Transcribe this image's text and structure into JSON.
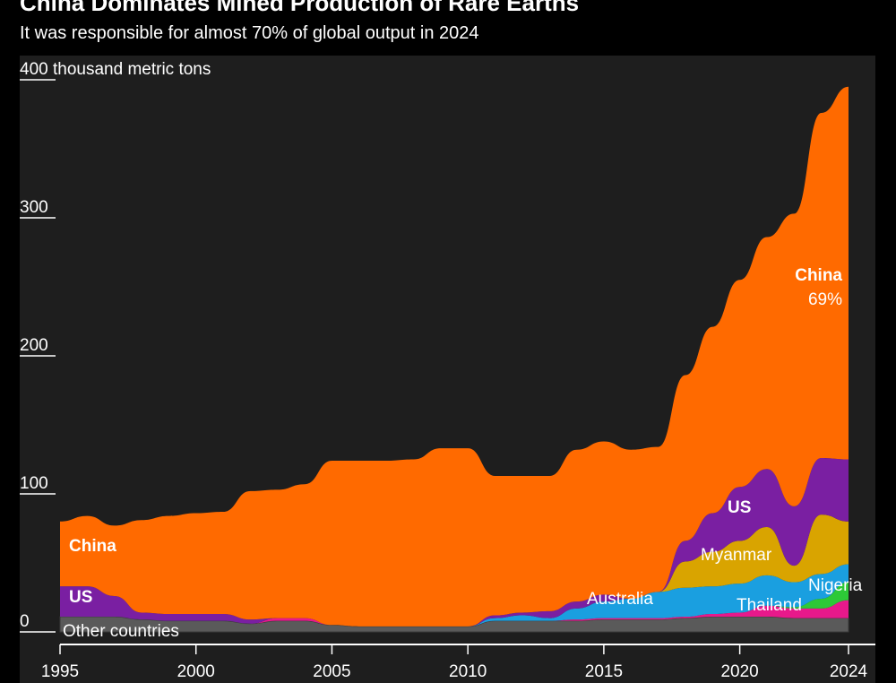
{
  "title": "China Dominates Mined Production of Rare Earths",
  "subtitle": "It was responsible for almost 70% of global output in 2024",
  "chart_data": {
    "type": "area",
    "stacked": true,
    "ylabel": "thousand metric tons",
    "ylim": [
      0,
      400
    ],
    "xlim": [
      1995,
      2024
    ],
    "yticks": [
      {
        "v": 0,
        "label": "0"
      },
      {
        "v": 100,
        "label": "100"
      },
      {
        "v": 200,
        "label": "200"
      },
      {
        "v": 300,
        "label": "300"
      },
      {
        "v": 400,
        "label": "400 thousand metric tons"
      }
    ],
    "xticks": [
      {
        "v": 1995,
        "label": "1995"
      },
      {
        "v": 2000,
        "label": "2000"
      },
      {
        "v": 2005,
        "label": "2005"
      },
      {
        "v": 2010,
        "label": "2010"
      },
      {
        "v": 2015,
        "label": "2015"
      },
      {
        "v": 2020,
        "label": "2020"
      },
      {
        "v": 2024,
        "label": "2024"
      }
    ],
    "x": [
      1995,
      1996,
      1997,
      1998,
      1999,
      2000,
      2001,
      2002,
      2003,
      2004,
      2005,
      2006,
      2007,
      2008,
      2009,
      2010,
      2011,
      2012,
      2013,
      2014,
      2015,
      2016,
      2017,
      2018,
      2019,
      2020,
      2021,
      2022,
      2023,
      2024
    ],
    "series": [
      {
        "name": "Other countries",
        "color": "#5a5a5a",
        "values": [
          11,
          11,
          11,
          9,
          8,
          8,
          8,
          6,
          8,
          8,
          5,
          4,
          4,
          4,
          4,
          4,
          8,
          8,
          8,
          8,
          9,
          9,
          9,
          10,
          11,
          11,
          11,
          10,
          10,
          10
        ]
      },
      {
        "name": "Thailand",
        "color": "#e8198b",
        "values": [
          0,
          0,
          0,
          0,
          0,
          0,
          0,
          0,
          2,
          2,
          0,
          0,
          0,
          0,
          0,
          0,
          0,
          0,
          0,
          1,
          1,
          1,
          1,
          1,
          2,
          3,
          8,
          7,
          7,
          13
        ]
      },
      {
        "name": "Nigeria",
        "color": "#2dc937",
        "values": [
          0,
          0,
          0,
          0,
          0,
          0,
          0,
          0,
          0,
          0,
          0,
          0,
          0,
          0,
          0,
          0,
          0,
          0,
          0,
          0,
          0,
          0,
          0,
          0,
          0,
          0,
          0,
          1,
          7,
          13
        ]
      },
      {
        "name": "Australia",
        "color": "#1a9fe0",
        "values": [
          0,
          0,
          0,
          0,
          0,
          0,
          0,
          0,
          0,
          0,
          0,
          0,
          0,
          0,
          0,
          0,
          2,
          4,
          2,
          8,
          12,
          14,
          19,
          21,
          20,
          21,
          22,
          18,
          18,
          13
        ]
      },
      {
        "name": "Myanmar",
        "color": "#d9a400",
        "values": [
          0,
          0,
          0,
          0,
          0,
          0,
          0,
          0,
          0,
          0,
          0,
          0,
          0,
          0,
          0,
          0,
          0,
          0,
          0,
          0,
          0,
          0,
          0,
          19,
          25,
          31,
          35,
          12,
          43,
          31
        ]
      },
      {
        "name": "US",
        "color": "#7a1fa2",
        "values": [
          22,
          22,
          15,
          5,
          5,
          5,
          5,
          3,
          0,
          0,
          0,
          0,
          0,
          0,
          0,
          0,
          2,
          2,
          5,
          5,
          5,
          0,
          0,
          15,
          28,
          39,
          42,
          43,
          41,
          45
        ]
      },
      {
        "name": "China",
        "color": "#ff6a00",
        "values": [
          47,
          51,
          51,
          67,
          71,
          73,
          74,
          93,
          93,
          97,
          119,
          120,
          120,
          121,
          129,
          129,
          101,
          99,
          98,
          110,
          111,
          108,
          105,
          120,
          135,
          150,
          168,
          212,
          250,
          270
        ]
      }
    ],
    "annotations": [
      {
        "text": "China",
        "series": "China",
        "year": 1995
      },
      {
        "text": "US",
        "series": "US",
        "year": 1995
      },
      {
        "text": "Other countries",
        "series": "Other countries",
        "year": 1995
      },
      {
        "text": "Australia",
        "series": "Australia",
        "year": 2015
      },
      {
        "text": "Myanmar",
        "series": "Myanmar",
        "year": 2020
      },
      {
        "text": "US",
        "series": "US",
        "year": 2020
      },
      {
        "text": "Thailand",
        "series": "Thailand",
        "year": 2021
      },
      {
        "text": "Nigeria",
        "series": "Nigeria",
        "year": 2024
      },
      {
        "text": "China",
        "series": "China",
        "year": 2024
      },
      {
        "text": "69%",
        "series": "China",
        "year": 2024
      }
    ]
  }
}
